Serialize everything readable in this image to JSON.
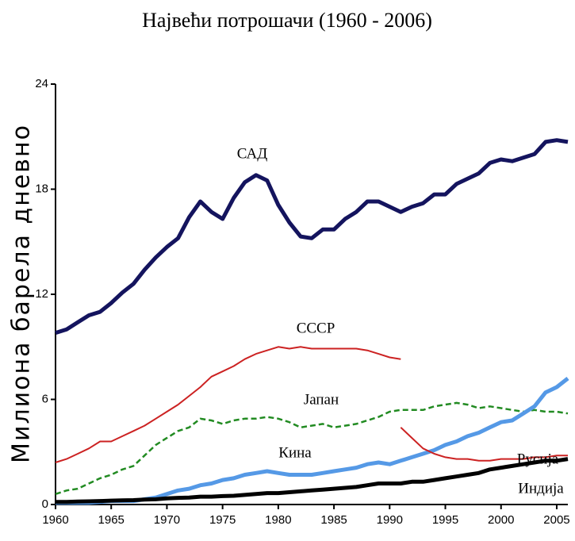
{
  "chart_data": {
    "type": "line",
    "title": "Највећи потрошачи (1960 - 2006)",
    "y_label": "Милиона барела дневно",
    "x": [
      1960,
      1961,
      1962,
      1963,
      1964,
      1965,
      1966,
      1967,
      1968,
      1969,
      1970,
      1971,
      1972,
      1973,
      1974,
      1975,
      1976,
      1977,
      1978,
      1979,
      1980,
      1981,
      1982,
      1983,
      1984,
      1985,
      1986,
      1987,
      1988,
      1989,
      1990,
      1991,
      1992,
      1993,
      1994,
      1995,
      1996,
      1997,
      1998,
      1999,
      2000,
      2001,
      2002,
      2003,
      2004,
      2005,
      2006
    ],
    "xlim": [
      1960,
      2006
    ],
    "xticks": [
      1960,
      1965,
      1970,
      1975,
      1980,
      1985,
      1990,
      1995,
      2000,
      2005
    ],
    "ylim": [
      0,
      24
    ],
    "yticks": [
      0,
      6,
      12,
      18,
      24
    ],
    "series": [
      {
        "name": "САД",
        "color": "#14145e",
        "width": 5,
        "values": [
          9.8,
          10.0,
          10.4,
          10.8,
          11.0,
          11.5,
          12.1,
          12.6,
          13.4,
          14.1,
          14.7,
          15.2,
          16.4,
          17.3,
          16.7,
          16.3,
          17.5,
          18.4,
          18.8,
          18.5,
          17.1,
          16.1,
          15.3,
          15.2,
          15.7,
          15.7,
          16.3,
          16.7,
          17.3,
          17.3,
          17.0,
          16.7,
          17.0,
          17.2,
          17.7,
          17.7,
          18.3,
          18.6,
          18.9,
          19.5,
          19.7,
          19.6,
          19.8,
          20.0,
          20.7,
          20.8,
          20.7
        ]
      },
      {
        "name": "СССР",
        "color": "#cc2222",
        "width": 2,
        "values": [
          2.4,
          2.6,
          2.9,
          3.2,
          3.6,
          3.6,
          3.9,
          4.2,
          4.5,
          4.9,
          5.3,
          5.7,
          6.2,
          6.7,
          7.3,
          7.6,
          7.9,
          8.3,
          8.6,
          8.8,
          9.0,
          8.9,
          9.0,
          8.9,
          8.9,
          8.9,
          8.9,
          8.9,
          8.8,
          8.6,
          8.4,
          8.3,
          null,
          null,
          null,
          null,
          null,
          null,
          null,
          null,
          null,
          null,
          null,
          null,
          null,
          null,
          null
        ]
      },
      {
        "name": "Јапан",
        "color": "#228b22",
        "width": 2.5,
        "dashed": true,
        "values": [
          0.6,
          0.8,
          0.9,
          1.2,
          1.5,
          1.7,
          2.0,
          2.2,
          2.8,
          3.4,
          3.8,
          4.2,
          4.4,
          4.9,
          4.8,
          4.6,
          4.8,
          4.9,
          4.9,
          5.0,
          4.9,
          4.7,
          4.4,
          4.5,
          4.6,
          4.4,
          4.5,
          4.6,
          4.8,
          5.0,
          5.3,
          5.4,
          5.4,
          5.4,
          5.6,
          5.7,
          5.8,
          5.7,
          5.5,
          5.6,
          5.5,
          5.4,
          5.3,
          5.4,
          5.3,
          5.3,
          5.2
        ]
      },
      {
        "name": "Кина",
        "color": "#5599e6",
        "width": 5,
        "values": [
          0.1,
          0.1,
          0.1,
          0.1,
          0.15,
          0.2,
          0.2,
          0.2,
          0.3,
          0.4,
          0.6,
          0.8,
          0.9,
          1.1,
          1.2,
          1.4,
          1.5,
          1.7,
          1.8,
          1.9,
          1.8,
          1.7,
          1.7,
          1.7,
          1.8,
          1.9,
          2.0,
          2.1,
          2.3,
          2.4,
          2.3,
          2.5,
          2.7,
          2.9,
          3.1,
          3.4,
          3.6,
          3.9,
          4.1,
          4.4,
          4.7,
          4.8,
          5.2,
          5.6,
          6.4,
          6.7,
          7.2
        ]
      },
      {
        "name": "Русија",
        "color": "#cc2222",
        "width": 2,
        "values": [
          null,
          null,
          null,
          null,
          null,
          null,
          null,
          null,
          null,
          null,
          null,
          null,
          null,
          null,
          null,
          null,
          null,
          null,
          null,
          null,
          null,
          null,
          null,
          null,
          null,
          null,
          null,
          null,
          null,
          null,
          null,
          4.4,
          3.8,
          3.2,
          2.9,
          2.7,
          2.6,
          2.6,
          2.5,
          2.5,
          2.6,
          2.6,
          2.6,
          2.7,
          2.7,
          2.8,
          2.8
        ]
      },
      {
        "name": "Индија",
        "color": "#000000",
        "width": 5,
        "values": [
          0.15,
          0.15,
          0.17,
          0.18,
          0.2,
          0.22,
          0.24,
          0.25,
          0.28,
          0.3,
          0.35,
          0.38,
          0.4,
          0.45,
          0.45,
          0.48,
          0.5,
          0.55,
          0.6,
          0.65,
          0.65,
          0.7,
          0.75,
          0.8,
          0.85,
          0.9,
          0.95,
          1.0,
          1.1,
          1.2,
          1.2,
          1.2,
          1.3,
          1.3,
          1.4,
          1.5,
          1.6,
          1.7,
          1.8,
          2.0,
          2.1,
          2.2,
          2.3,
          2.4,
          2.5,
          2.5,
          2.6
        ]
      }
    ]
  }
}
